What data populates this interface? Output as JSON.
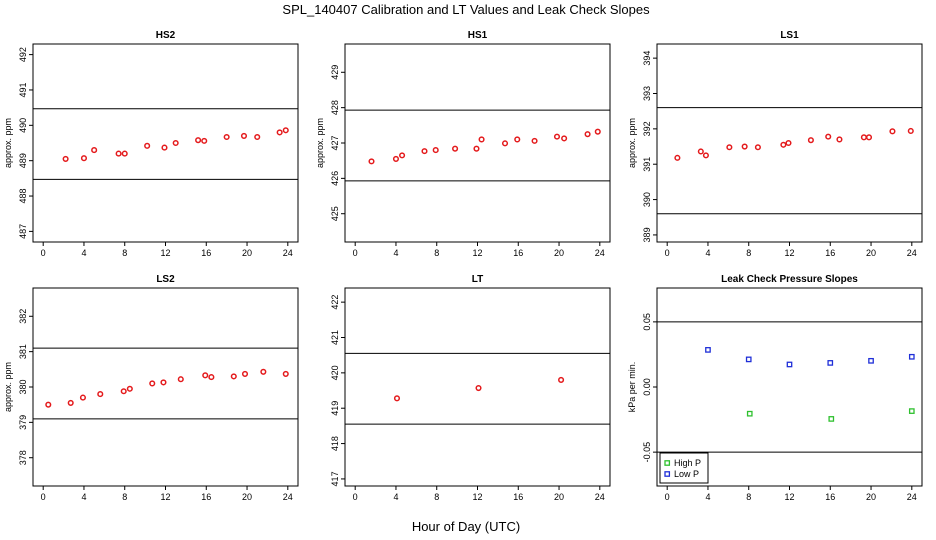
{
  "figure": {
    "title": "SPL_140407  Calibration and LT Values and Leak Check Slopes",
    "xlabel": "Hour of Day (UTC)"
  },
  "colors": {
    "red": "#e41a1c",
    "green": "#2ec02e",
    "blue": "#1f2fd8",
    "axis": "#000000"
  },
  "chart_data": [
    {
      "type": "scatter",
      "title": "HS2",
      "ylabel": "approx. ppm",
      "xlim": [
        -1,
        25
      ],
      "ylim": [
        486.7,
        492.3
      ],
      "xticks": [
        0,
        4,
        8,
        12,
        16,
        20,
        24
      ],
      "yticks": [
        487,
        488,
        489,
        490,
        491,
        492
      ],
      "hlines": [
        488.47,
        490.47
      ],
      "color": "red",
      "x": [
        2.2,
        4.0,
        5.0,
        7.4,
        8.0,
        10.2,
        11.9,
        13.0,
        15.2,
        15.8,
        18.0,
        19.7,
        21.0,
        23.2,
        23.8
      ],
      "y": [
        489.05,
        489.07,
        489.3,
        489.2,
        489.2,
        489.42,
        489.37,
        489.5,
        489.58,
        489.56,
        489.67,
        489.7,
        489.67,
        489.8,
        489.86
      ]
    },
    {
      "type": "scatter",
      "title": "HS1",
      "ylabel": "approx. ppm",
      "xlim": [
        -1,
        25
      ],
      "ylim": [
        424.2,
        429.8
      ],
      "xticks": [
        0,
        4,
        8,
        12,
        16,
        20,
        24
      ],
      "yticks": [
        425,
        426,
        427,
        428,
        429
      ],
      "hlines": [
        425.93,
        427.93
      ],
      "color": "red",
      "x": [
        1.6,
        4.0,
        4.6,
        6.8,
        7.9,
        9.8,
        11.9,
        12.4,
        14.7,
        15.9,
        17.6,
        19.8,
        20.5,
        22.8,
        23.8
      ],
      "y": [
        426.48,
        426.55,
        426.65,
        426.77,
        426.8,
        426.84,
        426.84,
        427.1,
        426.99,
        427.1,
        427.06,
        427.18,
        427.13,
        427.25,
        427.32
      ]
    },
    {
      "type": "scatter",
      "title": "LS1",
      "ylabel": "approx. ppm",
      "xlim": [
        -1,
        25
      ],
      "ylim": [
        388.8,
        394.4
      ],
      "xticks": [
        0,
        4,
        8,
        12,
        16,
        20,
        24
      ],
      "yticks": [
        389,
        390,
        391,
        392,
        393,
        394
      ],
      "hlines": [
        389.6,
        392.6
      ],
      "color": "red",
      "x": [
        1.0,
        3.3,
        3.8,
        6.1,
        7.6,
        8.9,
        11.4,
        11.9,
        14.1,
        15.8,
        16.9,
        19.3,
        19.8,
        22.1,
        23.9
      ],
      "y": [
        391.18,
        391.36,
        391.25,
        391.48,
        391.5,
        391.48,
        391.55,
        391.6,
        391.68,
        391.78,
        391.7,
        391.76,
        391.76,
        391.93,
        391.94
      ]
    },
    {
      "type": "scatter",
      "title": "LS2",
      "ylabel": "approx. ppm",
      "xlim": [
        -1,
        25
      ],
      "ylim": [
        377.2,
        382.8
      ],
      "xticks": [
        0,
        4,
        8,
        12,
        16,
        20,
        24
      ],
      "yticks": [
        378,
        379,
        380,
        381,
        382
      ],
      "hlines": [
        379.1,
        381.1
      ],
      "color": "red",
      "x": [
        0.5,
        2.7,
        3.9,
        5.6,
        7.9,
        8.5,
        10.7,
        11.8,
        13.5,
        15.9,
        16.5,
        18.7,
        19.8,
        21.6,
        23.8
      ],
      "y": [
        379.5,
        379.55,
        379.7,
        379.8,
        379.88,
        379.95,
        380.1,
        380.13,
        380.22,
        380.33,
        380.28,
        380.3,
        380.37,
        380.43,
        380.37
      ]
    },
    {
      "type": "scatter",
      "title": "LT",
      "ylabel": "",
      "xlim": [
        -1,
        25
      ],
      "ylim": [
        416.8,
        422.4
      ],
      "xticks": [
        0,
        4,
        8,
        12,
        16,
        20,
        24
      ],
      "yticks": [
        417,
        418,
        419,
        420,
        421,
        422
      ],
      "hlines": [
        418.55,
        420.55
      ],
      "color": "red",
      "x": [
        4.1,
        12.1,
        20.2
      ],
      "y": [
        419.28,
        419.57,
        419.8
      ]
    },
    {
      "type": "scatter",
      "title": "Leak Check Pressure Slopes",
      "ylabel": "kPa per min.",
      "xlim": [
        -1,
        25
      ],
      "ylim": [
        -0.076,
        0.076
      ],
      "xticks": [
        0,
        4,
        8,
        12,
        16,
        20,
        24
      ],
      "yticks": [
        -0.05,
        0.0,
        0.05
      ],
      "ytick_labels": [
        "-0.05",
        "0.00",
        "0.05"
      ],
      "hlines": [
        -0.05,
        0.05
      ],
      "legend": {
        "placement": "bottom-left",
        "entries": [
          "High P",
          "Low P"
        ]
      },
      "series": [
        {
          "name": "High P",
          "color": "green",
          "x": [
            8.1,
            16.1,
            24.0
          ],
          "y": [
            -0.0205,
            -0.0245,
            -0.0185
          ]
        },
        {
          "name": "Low P",
          "color": "blue",
          "x": [
            4.0,
            8.0,
            12.0,
            16.0,
            20.0,
            24.0
          ],
          "y": [
            0.0285,
            0.0212,
            0.0173,
            0.0185,
            0.0201,
            0.0232
          ]
        }
      ]
    }
  ]
}
